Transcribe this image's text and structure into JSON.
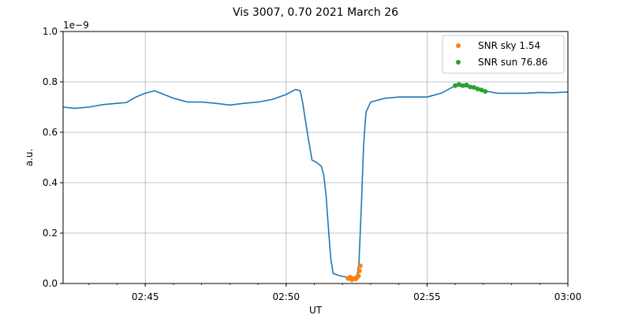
{
  "chart_data": {
    "type": "line",
    "title": "Vis 3007, 0.70 2021 March 26",
    "xlabel": "UT",
    "ylabel": "a.u.",
    "y_offset_label": "1e−9",
    "y_scale": 1e-09,
    "xlim": [
      "02:42:05",
      "03:00:00"
    ],
    "ylim": [
      0.0,
      1.0
    ],
    "x_major_ticks": [
      "02:45",
      "02:50",
      "02:55",
      "03:00"
    ],
    "y_ticks": [
      "0.0",
      "0.2",
      "0.4",
      "0.6",
      "0.8",
      "1.0"
    ],
    "grid": true,
    "legend_position": "upper right",
    "colors": {
      "signal": "#1f77b4",
      "sky": "#ff7f0e",
      "sun": "#2ca02c",
      "grid": "#b0b0b0"
    },
    "series": [
      {
        "name": "",
        "kind": "line",
        "color": "#1f77b4",
        "points": [
          [
            "02:42:05",
            0.7
          ],
          [
            "02:42:30",
            0.695
          ],
          [
            "02:43:00",
            0.7
          ],
          [
            "02:43:30",
            0.71
          ],
          [
            "02:44:00",
            0.715
          ],
          [
            "02:44:20",
            0.718
          ],
          [
            "02:44:40",
            0.74
          ],
          [
            "02:45:00",
            0.755
          ],
          [
            "02:45:20",
            0.765
          ],
          [
            "02:45:40",
            0.75
          ],
          [
            "02:46:00",
            0.735
          ],
          [
            "02:46:30",
            0.72
          ],
          [
            "02:47:00",
            0.72
          ],
          [
            "02:47:30",
            0.715
          ],
          [
            "02:48:00",
            0.708
          ],
          [
            "02:48:30",
            0.715
          ],
          [
            "02:49:00",
            0.72
          ],
          [
            "02:49:30",
            0.73
          ],
          [
            "02:50:00",
            0.75
          ],
          [
            "02:50:20",
            0.77
          ],
          [
            "02:50:30",
            0.765
          ],
          [
            "02:50:35",
            0.72
          ],
          [
            "02:50:45",
            0.6
          ],
          [
            "02:50:55",
            0.49
          ],
          [
            "02:51:05",
            0.48
          ],
          [
            "02:51:15",
            0.465
          ],
          [
            "02:51:20",
            0.43
          ],
          [
            "02:51:25",
            0.35
          ],
          [
            "02:51:30",
            0.22
          ],
          [
            "02:51:35",
            0.1
          ],
          [
            "02:51:40",
            0.04
          ],
          [
            "02:51:55",
            0.03
          ],
          [
            "02:52:10",
            0.025
          ],
          [
            "02:52:30",
            0.02
          ],
          [
            "02:52:35",
            0.08
          ],
          [
            "02:52:40",
            0.3
          ],
          [
            "02:52:45",
            0.55
          ],
          [
            "02:52:50",
            0.68
          ],
          [
            "02:53:00",
            0.72
          ],
          [
            "02:53:30",
            0.735
          ],
          [
            "02:54:00",
            0.74
          ],
          [
            "02:54:30",
            0.74
          ],
          [
            "02:55:00",
            0.74
          ],
          [
            "02:55:30",
            0.755
          ],
          [
            "02:56:00",
            0.785
          ],
          [
            "02:56:30",
            0.78
          ],
          [
            "02:57:00",
            0.765
          ],
          [
            "02:57:30",
            0.755
          ],
          [
            "02:58:00",
            0.755
          ],
          [
            "02:58:30",
            0.755
          ],
          [
            "02:59:00",
            0.758
          ],
          [
            "02:59:30",
            0.757
          ],
          [
            "03:00:00",
            0.76
          ]
        ]
      },
      {
        "name": "SNR sky 1.54",
        "kind": "scatter",
        "color": "#ff7f0e",
        "points": [
          [
            "02:52:12",
            0.02
          ],
          [
            "02:52:16",
            0.025
          ],
          [
            "02:52:20",
            0.015
          ],
          [
            "02:52:24",
            0.02
          ],
          [
            "02:52:28",
            0.018
          ],
          [
            "02:52:31",
            0.025
          ],
          [
            "02:52:34",
            0.03
          ],
          [
            "02:52:36",
            0.05
          ],
          [
            "02:52:38",
            0.07
          ]
        ]
      },
      {
        "name": "SNR sun 76.86",
        "kind": "scatter",
        "color": "#2ca02c",
        "points": [
          [
            "02:56:00",
            0.785
          ],
          [
            "02:56:08",
            0.79
          ],
          [
            "02:56:16",
            0.785
          ],
          [
            "02:56:24",
            0.788
          ],
          [
            "02:56:32",
            0.78
          ],
          [
            "02:56:40",
            0.778
          ],
          [
            "02:56:48",
            0.772
          ],
          [
            "02:56:56",
            0.768
          ],
          [
            "02:57:04",
            0.762
          ]
        ]
      }
    ]
  }
}
